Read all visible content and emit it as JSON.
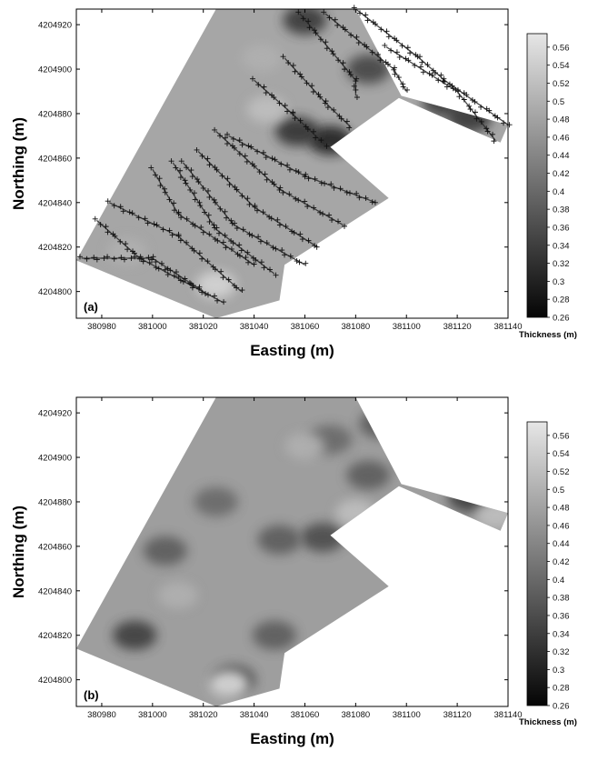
{
  "chart_data": [
    {
      "type": "heatmap",
      "panel_label": "(a)",
      "xlabel": "Easting (m)",
      "ylabel": "Northing (m)",
      "xlim": [
        380970,
        381140
      ],
      "ylim": [
        4204788,
        4204927
      ],
      "x_ticks": [
        380980,
        381000,
        381020,
        381040,
        381060,
        381080,
        381100,
        381120,
        381140
      ],
      "x_tick_labels": [
        "380980",
        "381000",
        "381020",
        "381040",
        "381060",
        "381080",
        "381100",
        "381120",
        "381140"
      ],
      "y_ticks": [
        4204800,
        4204820,
        4204840,
        4204860,
        4204880,
        4204900,
        4204920
      ],
      "y_tick_labels": [
        "4204800",
        "4204820",
        "4204840",
        "4204860",
        "4204880",
        "4204900",
        "4204920"
      ],
      "survey_area_boundary": [
        [
          380970,
          4204814
        ],
        [
          381025,
          4204927
        ],
        [
          381080,
          4204927
        ],
        [
          381098,
          4204888
        ],
        [
          381140,
          4204875
        ],
        [
          381137,
          4204867
        ],
        [
          381097,
          4204887
        ],
        [
          381070,
          4204865
        ],
        [
          381093,
          4204842
        ],
        [
          381052,
          4204812
        ],
        [
          381050,
          4204796
        ],
        [
          381025,
          4204788
        ]
      ],
      "dark_patches": [
        {
          "x": 381070,
          "y": 4204868,
          "value": 0.3
        },
        {
          "x": 381057,
          "y": 4204872,
          "value": 0.32
        },
        {
          "x": 381060,
          "y": 4204922,
          "value": 0.33
        },
        {
          "x": 381085,
          "y": 4204900,
          "value": 0.35
        },
        {
          "x": 381115,
          "y": 4204885,
          "value": 0.34
        },
        {
          "x": 381125,
          "y": 4204878,
          "value": 0.33
        }
      ],
      "light_patches": [
        {
          "x": 381025,
          "y": 4204803,
          "value": 0.55
        },
        {
          "x": 381045,
          "y": 4204882,
          "value": 0.52
        },
        {
          "x": 381043,
          "y": 4204905,
          "value": 0.5
        },
        {
          "x": 380990,
          "y": 4204818,
          "value": 0.5
        }
      ],
      "survey_track_lines": [
        [
          [
            381058,
            4204925
          ],
          [
            381080,
            4204895
          ],
          [
            381080,
            4204888
          ]
        ],
        [
          [
            381068,
            4204925
          ],
          [
            381095,
            4204900
          ],
          [
            381100,
            4204890
          ]
        ],
        [
          [
            381080,
            4204927
          ],
          [
            381105,
            4204905
          ],
          [
            381115,
            4204895
          ],
          [
            381140,
            4204875
          ]
        ],
        [
          [
            381092,
            4204910
          ],
          [
            381120,
            4204890
          ],
          [
            381135,
            4204868
          ]
        ],
        [
          [
            381052,
            4204905
          ],
          [
            381068,
            4204885
          ],
          [
            381078,
            4204874
          ]
        ],
        [
          [
            381040,
            4204895
          ],
          [
            381055,
            4204880
          ],
          [
            381068,
            4204866
          ]
        ],
        [
          [
            381030,
            4204870
          ],
          [
            381060,
            4204852
          ],
          [
            381088,
            4204840
          ]
        ],
        [
          [
            381025,
            4204872
          ],
          [
            381050,
            4204846
          ],
          [
            381075,
            4204830
          ]
        ],
        [
          [
            381018,
            4204863
          ],
          [
            381040,
            4204838
          ],
          [
            381065,
            4204820
          ]
        ],
        [
          [
            381012,
            4204858
          ],
          [
            381032,
            4204830
          ],
          [
            381060,
            4204812
          ]
        ],
        [
          [
            381008,
            4204858
          ],
          [
            381025,
            4204828
          ],
          [
            381048,
            4204808
          ]
        ],
        [
          [
            381000,
            4204855
          ],
          [
            381010,
            4204835
          ],
          [
            381040,
            4204812
          ]
        ],
        [
          [
            380983,
            4204840
          ],
          [
            381010,
            4204825
          ],
          [
            381035,
            4204800
          ]
        ],
        [
          [
            380978,
            4204832
          ],
          [
            380995,
            4204815
          ],
          [
            381028,
            4204795
          ]
        ],
        [
          [
            380972,
            4204815
          ],
          [
            381000,
            4204815
          ],
          [
            381020,
            4204800
          ]
        ]
      ],
      "colorbar": {
        "label": "Thickness (m)",
        "min": 0.26,
        "max": 0.575,
        "ticks": [
          0.26,
          0.28,
          0.3,
          0.32,
          0.34,
          0.36,
          0.38,
          0.4,
          0.42,
          0.44,
          0.46,
          0.48,
          0.5,
          0.52,
          0.54,
          0.56
        ],
        "tick_labels": [
          "0.26",
          "0.28",
          "0.3",
          "0.32",
          "0.34",
          "0.36",
          "0.38",
          "0.4",
          "0.42",
          "0.44",
          "0.46",
          "0.48",
          "0.5",
          "0.52",
          "0.54",
          "0.56"
        ],
        "color_low": "#050505",
        "color_high": "#e6e6e6"
      },
      "field_color": "#a6a6a6"
    },
    {
      "type": "heatmap",
      "panel_label": "(b)",
      "xlabel": "Easting (m)",
      "ylabel": "Northing (m)",
      "xlim": [
        380970,
        381140
      ],
      "ylim": [
        4204788,
        4204927
      ],
      "x_ticks": [
        380980,
        381000,
        381020,
        381040,
        381060,
        381080,
        381100,
        381120,
        381140
      ],
      "x_tick_labels": [
        "380980",
        "381000",
        "381020",
        "381040",
        "381060",
        "381080",
        "381100",
        "381120",
        "381140"
      ],
      "y_ticks": [
        4204800,
        4204820,
        4204840,
        4204860,
        4204880,
        4204900,
        4204920
      ],
      "y_tick_labels": [
        "4204800",
        "4204820",
        "4204840",
        "4204860",
        "4204880",
        "4204900",
        "4204920"
      ],
      "survey_area_boundary": [
        [
          380970,
          4204814
        ],
        [
          381025,
          4204927
        ],
        [
          381080,
          4204927
        ],
        [
          381098,
          4204888
        ],
        [
          381140,
          4204875
        ],
        [
          381137,
          4204867
        ],
        [
          381097,
          4204887
        ],
        [
          381070,
          4204865
        ],
        [
          381093,
          4204842
        ],
        [
          381052,
          4204812
        ],
        [
          381050,
          4204796
        ],
        [
          381025,
          4204788
        ]
      ],
      "dark_patches": [
        {
          "x": 381105,
          "y": 4204900,
          "value": 0.36
        },
        {
          "x": 381125,
          "y": 4204882,
          "value": 0.34
        },
        {
          "x": 381085,
          "y": 4204892,
          "value": 0.38
        },
        {
          "x": 381067,
          "y": 4204864,
          "value": 0.36
        },
        {
          "x": 381050,
          "y": 4204863,
          "value": 0.38
        },
        {
          "x": 381070,
          "y": 4204908,
          "value": 0.4
        },
        {
          "x": 381090,
          "y": 4204915,
          "value": 0.38
        },
        {
          "x": 380993,
          "y": 4204820,
          "value": 0.34
        },
        {
          "x": 381032,
          "y": 4204800,
          "value": 0.36
        },
        {
          "x": 381048,
          "y": 4204820,
          "value": 0.38
        },
        {
          "x": 381005,
          "y": 4204858,
          "value": 0.38
        },
        {
          "x": 381025,
          "y": 4204880,
          "value": 0.4
        }
      ],
      "light_patches": [
        {
          "x": 381030,
          "y": 4204798,
          "value": 0.56
        },
        {
          "x": 381080,
          "y": 4204875,
          "value": 0.52
        },
        {
          "x": 381060,
          "y": 4204905,
          "value": 0.5
        },
        {
          "x": 381135,
          "y": 4204874,
          "value": 0.52
        },
        {
          "x": 381010,
          "y": 4204838,
          "value": 0.5
        }
      ],
      "survey_track_lines": [],
      "colorbar": {
        "label": "Thickness (m)",
        "min": 0.26,
        "max": 0.575,
        "ticks": [
          0.26,
          0.28,
          0.3,
          0.32,
          0.34,
          0.36,
          0.38,
          0.4,
          0.42,
          0.44,
          0.46,
          0.48,
          0.5,
          0.52,
          0.54,
          0.56
        ],
        "tick_labels": [
          "0.26",
          "0.28",
          "0.3",
          "0.32",
          "0.34",
          "0.36",
          "0.38",
          "0.4",
          "0.42",
          "0.44",
          "0.46",
          "0.48",
          "0.5",
          "0.52",
          "0.54",
          "0.56"
        ],
        "color_low": "#050505",
        "color_high": "#e6e6e6"
      },
      "field_color": "#9e9e9e"
    }
  ]
}
